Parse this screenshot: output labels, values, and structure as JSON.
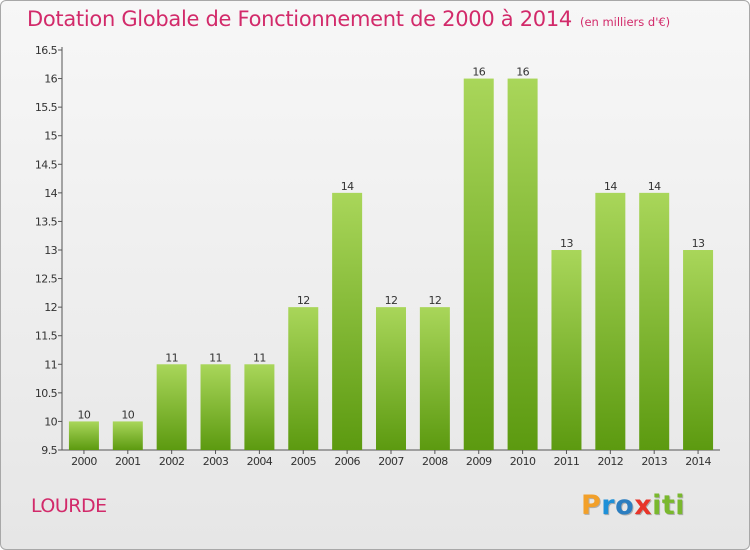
{
  "title": "Dotation Globale de Fonctionnement de 2000 à 2014",
  "subtitle": "(en milliers d'€)",
  "commune": "LOURDE",
  "logo": {
    "letters": [
      "P",
      "r",
      "o",
      "x",
      "i",
      "t",
      "i"
    ],
    "colors": [
      "#f2a02a",
      "#1e90d8",
      "#2c7ec0",
      "#e8352a",
      "#7ab82e",
      "#7ab82e",
      "#7ab82e"
    ]
  },
  "colors": {
    "title": "#d22a6a",
    "bar_light": "#a9d65a",
    "bar_dark": "#5c9a10"
  },
  "chart_data": {
    "type": "bar",
    "categories": [
      "2000",
      "2001",
      "2002",
      "2003",
      "2004",
      "2005",
      "2006",
      "2007",
      "2008",
      "2009",
      "2010",
      "2011",
      "2012",
      "2013",
      "2014"
    ],
    "values": [
      10,
      10,
      11,
      11,
      11,
      12,
      14,
      12,
      12,
      16,
      16,
      13,
      14,
      14,
      13
    ],
    "data_labels": [
      "10",
      "10",
      "11",
      "11",
      "11",
      "12",
      "14",
      "12",
      "12",
      "16",
      "16",
      "13",
      "14",
      "14",
      "13"
    ],
    "title": "Dotation Globale de Fonctionnement de 2000 à 2014",
    "subtitle": "(en milliers d'€)",
    "ylim": [
      9.5,
      16.5
    ],
    "y_ticks": [
      "9.5",
      "10",
      "10.5",
      "11",
      "11.5",
      "12",
      "12.5",
      "13",
      "13.5",
      "14",
      "14.5",
      "15",
      "15.5",
      "16",
      "16.5"
    ],
    "grid": false,
    "legend": "none"
  }
}
